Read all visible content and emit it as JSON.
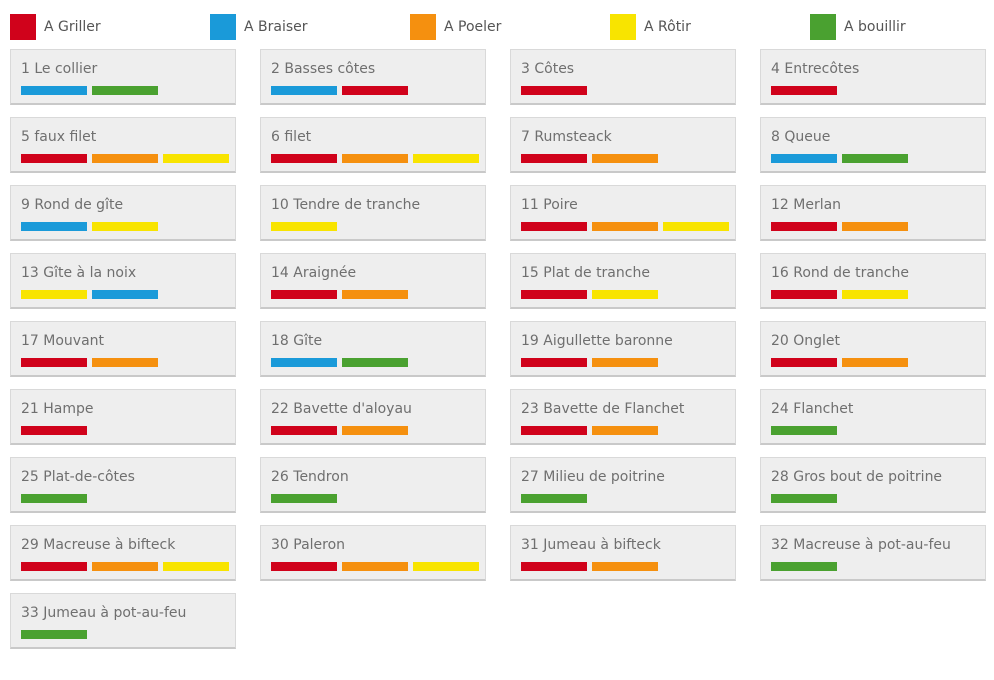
{
  "methods": {
    "griller": {
      "label": "A Griller",
      "color": "#d0021b"
    },
    "braiser": {
      "label": "A Braiser",
      "color": "#1a9ad9"
    },
    "poeler": {
      "label": "A Poeler",
      "color": "#f5900f"
    },
    "rotir": {
      "label": "A Rôtir",
      "color": "#f8e400"
    },
    "bouillir": {
      "label": "A bouillir",
      "color": "#4aa130"
    }
  },
  "legend": [
    "griller",
    "braiser",
    "poeler",
    "rotir",
    "bouillir"
  ],
  "cuts": [
    {
      "label": "1 Le collier",
      "methods": [
        "braiser",
        "bouillir"
      ]
    },
    {
      "label": "2 Basses côtes",
      "methods": [
        "braiser",
        "griller"
      ]
    },
    {
      "label": "3 Côtes",
      "methods": [
        "griller"
      ]
    },
    {
      "label": "4 Entrecôtes",
      "methods": [
        "griller"
      ]
    },
    {
      "label": "5 faux filet",
      "methods": [
        "griller",
        "poeler",
        "rotir"
      ]
    },
    {
      "label": "6 filet",
      "methods": [
        "griller",
        "poeler",
        "rotir"
      ]
    },
    {
      "label": "7 Rumsteack",
      "methods": [
        "griller",
        "poeler"
      ]
    },
    {
      "label": "8 Queue",
      "methods": [
        "braiser",
        "bouillir"
      ]
    },
    {
      "label": "9 Rond de gîte",
      "methods": [
        "braiser",
        "rotir"
      ]
    },
    {
      "label": "10 Tendre de tranche",
      "methods": [
        "rotir"
      ]
    },
    {
      "label": "11 Poire",
      "methods": [
        "griller",
        "poeler",
        "rotir"
      ]
    },
    {
      "label": "12 Merlan",
      "methods": [
        "griller",
        "poeler"
      ]
    },
    {
      "label": "13 Gîte à la noix",
      "methods": [
        "rotir",
        "braiser"
      ]
    },
    {
      "label": "14 Araignée",
      "methods": [
        "griller",
        "poeler"
      ]
    },
    {
      "label": "15 Plat de tranche",
      "methods": [
        "griller",
        "rotir"
      ]
    },
    {
      "label": "16 Rond de tranche",
      "methods": [
        "griller",
        "rotir"
      ]
    },
    {
      "label": "17 Mouvant",
      "methods": [
        "griller",
        "poeler"
      ]
    },
    {
      "label": "18 Gîte",
      "methods": [
        "braiser",
        "bouillir"
      ]
    },
    {
      "label": "19 Aigullette baronne",
      "methods": [
        "griller",
        "poeler"
      ]
    },
    {
      "label": "20 Onglet",
      "methods": [
        "griller",
        "poeler"
      ]
    },
    {
      "label": "21 Hampe",
      "methods": [
        "griller"
      ]
    },
    {
      "label": "22 Bavette d'aloyau",
      "methods": [
        "griller",
        "poeler"
      ]
    },
    {
      "label": "23 Bavette de Flanchet",
      "methods": [
        "griller",
        "poeler"
      ]
    },
    {
      "label": "24 Flanchet",
      "methods": [
        "bouillir"
      ]
    },
    {
      "label": "25 Plat-de-côtes",
      "methods": [
        "bouillir"
      ]
    },
    {
      "label": "26 Tendron",
      "methods": [
        "bouillir"
      ]
    },
    {
      "label": "27 Milieu de poitrine",
      "methods": [
        "bouillir"
      ]
    },
    {
      "label": "28 Gros bout de poitrine",
      "methods": [
        "bouillir"
      ]
    },
    {
      "label": "29 Macreuse à bifteck",
      "methods": [
        "griller",
        "poeler",
        "rotir"
      ]
    },
    {
      "label": "30 Paleron",
      "methods": [
        "griller",
        "poeler",
        "rotir"
      ]
    },
    {
      "label": "31 Jumeau à bifteck",
      "methods": [
        "griller",
        "poeler"
      ]
    },
    {
      "label": "32 Macreuse à pot-au-feu",
      "methods": [
        "bouillir"
      ]
    },
    {
      "label": "33 Jumeau à pot-au-feu",
      "methods": [
        "bouillir"
      ]
    }
  ]
}
